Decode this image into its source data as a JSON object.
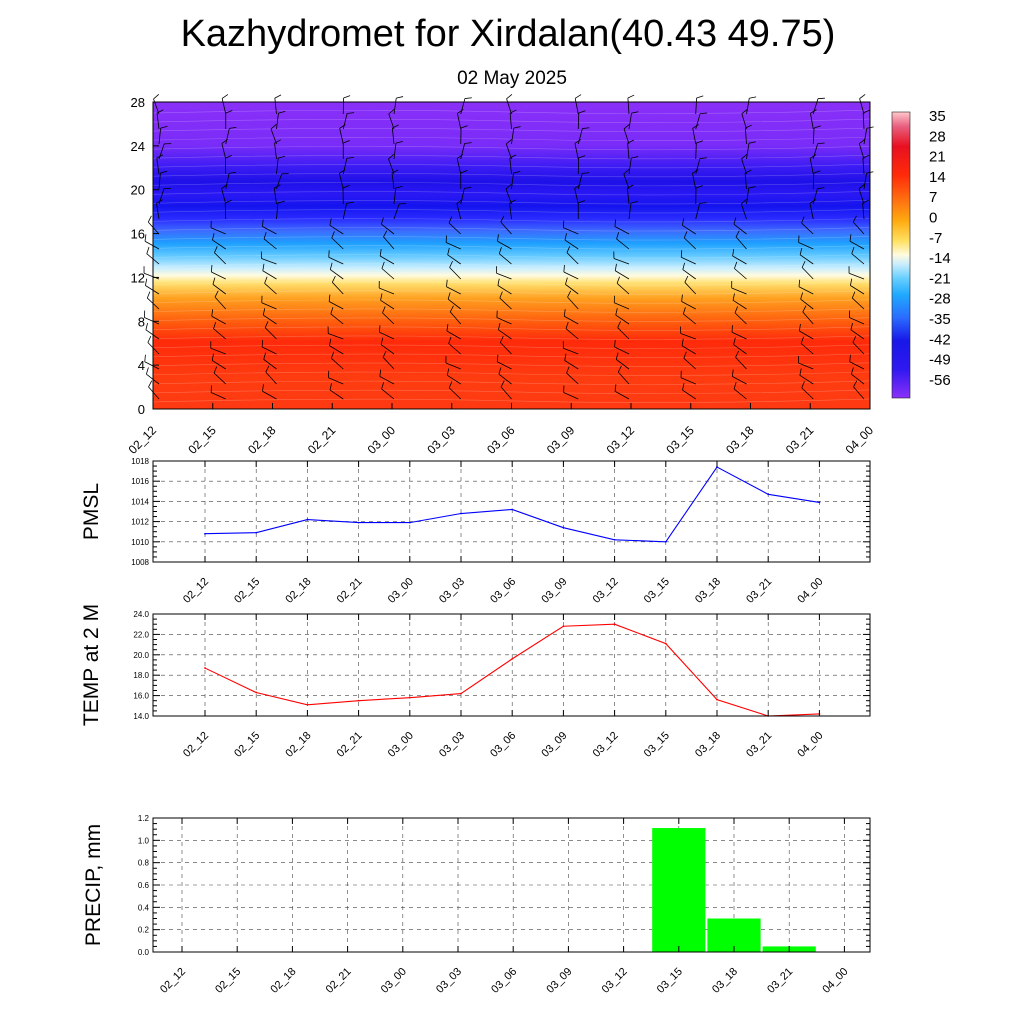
{
  "header": {
    "title": "Kazhydromet for Xirdalan(40.43 49.75)",
    "date": "02 May 2025"
  },
  "chart_data": [
    {
      "type": "heatmap",
      "x_ticks": [
        "02_12",
        "02_15",
        "02_18",
        "02_21",
        "03_00",
        "03_03",
        "03_06",
        "03_09",
        "03_12",
        "03_15",
        "03_18",
        "03_21",
        "04_00"
      ],
      "y_ticks": [
        "0",
        "4",
        "8",
        "12",
        "16",
        "20",
        "24",
        "28"
      ],
      "ylim": [
        0,
        28
      ],
      "colorbar_labels": [
        "35",
        "28",
        "21",
        "14",
        "7",
        "0",
        "-7",
        "-14",
        "-21",
        "-28",
        "-35",
        "-42",
        "-49",
        "-56"
      ],
      "colorbar_range": [
        -63,
        42
      ],
      "overlay": "wind barbs"
    },
    {
      "type": "line",
      "ylabel": "PMSL",
      "categories": [
        "02_12",
        "02_15",
        "02_18",
        "02_21",
        "03_00",
        "03_03",
        "03_06",
        "03_09",
        "03_12",
        "03_15",
        "03_18",
        "03_21",
        "04_00"
      ],
      "values": [
        1010.8,
        1010.9,
        1012.2,
        1011.9,
        1011.9,
        1012.8,
        1013.2,
        1011.4,
        1010.2,
        1010.0,
        1017.4,
        1014.7,
        1013.9
      ],
      "y_ticks": [
        "1008",
        "1010",
        "1012",
        "1014",
        "1016",
        "1018"
      ],
      "ylim": [
        1008,
        1018
      ],
      "color": "#0000ff",
      "grid": true
    },
    {
      "type": "line",
      "ylabel": "TEMP at 2 M",
      "categories": [
        "02_12",
        "02_15",
        "02_18",
        "02_21",
        "03_00",
        "03_03",
        "03_06",
        "03_09",
        "03_12",
        "03_15",
        "03_18",
        "03_21",
        "04_00"
      ],
      "values": [
        18.7,
        16.3,
        15.1,
        15.5,
        15.8,
        16.2,
        19.6,
        22.8,
        23.0,
        21.1,
        15.6,
        14.0,
        14.2
      ],
      "y_ticks": [
        "14.0",
        "16.0",
        "18.0",
        "20.0",
        "22.0",
        "24.0"
      ],
      "ylim": [
        14,
        24
      ],
      "color": "#ff0000",
      "grid": true
    },
    {
      "type": "bar",
      "ylabel": "PRECIP, mm",
      "categories": [
        "02_12",
        "02_15",
        "02_18",
        "02_21",
        "03_00",
        "03_03",
        "03_06",
        "03_09",
        "03_12",
        "03_15",
        "03_18",
        "03_21",
        "04_00"
      ],
      "values": [
        0,
        0,
        0,
        0,
        0,
        0,
        0,
        0,
        0,
        1.11,
        0.3,
        0.05,
        0
      ],
      "y_ticks": [
        "0.0",
        "0.2",
        "0.4",
        "0.6",
        "0.8",
        "1.0",
        "1.2"
      ],
      "ylim": [
        0,
        1.2
      ],
      "color": "#00ff00",
      "grid": true
    }
  ]
}
